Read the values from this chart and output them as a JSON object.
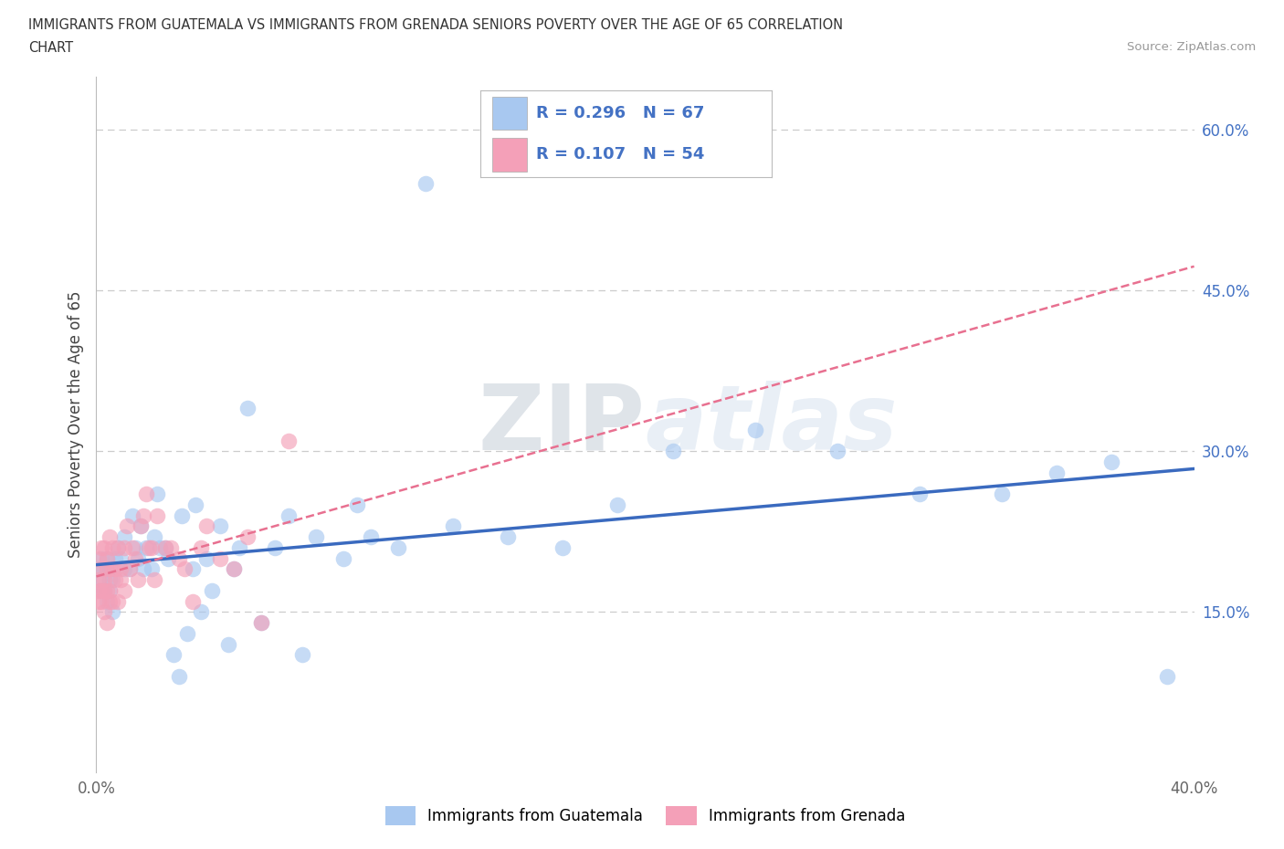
{
  "title_line1": "IMMIGRANTS FROM GUATEMALA VS IMMIGRANTS FROM GRENADA SENIORS POVERTY OVER THE AGE OF 65 CORRELATION",
  "title_line2": "CHART",
  "source": "Source: ZipAtlas.com",
  "ylabel": "Seniors Poverty Over the Age of 65",
  "xlim": [
    0.0,
    0.4
  ],
  "ylim": [
    0.0,
    0.65
  ],
  "xticks": [
    0.0,
    0.05,
    0.1,
    0.15,
    0.2,
    0.25,
    0.3,
    0.35,
    0.4
  ],
  "xticklabels": [
    "0.0%",
    "",
    "",
    "",
    "",
    "",
    "",
    "",
    "40.0%"
  ],
  "yticks_right": [
    0.0,
    0.15,
    0.3,
    0.45,
    0.6
  ],
  "yticklabels_right": [
    "",
    "15.0%",
    "30.0%",
    "45.0%",
    "60.0%"
  ],
  "grid_color": "#cccccc",
  "background_color": "#ffffff",
  "guatemala_color": "#a8c8f0",
  "grenada_color": "#f4a0b8",
  "guatemala_line_color": "#3a6abf",
  "grenada_line_color": "#e87090",
  "R_guatemala": 0.296,
  "N_guatemala": 67,
  "R_grenada": 0.107,
  "N_grenada": 54,
  "legend_label_1": "Immigrants from Guatemala",
  "legend_label_2": "Immigrants from Grenada",
  "guatemala_x": [
    0.001,
    0.001,
    0.002,
    0.002,
    0.003,
    0.003,
    0.004,
    0.004,
    0.005,
    0.005,
    0.005,
    0.006,
    0.006,
    0.007,
    0.008,
    0.009,
    0.01,
    0.01,
    0.012,
    0.013,
    0.014,
    0.015,
    0.016,
    0.017,
    0.018,
    0.02,
    0.021,
    0.022,
    0.023,
    0.025,
    0.026,
    0.028,
    0.03,
    0.031,
    0.033,
    0.035,
    0.036,
    0.038,
    0.04,
    0.042,
    0.045,
    0.048,
    0.05,
    0.052,
    0.055,
    0.06,
    0.065,
    0.07,
    0.075,
    0.08,
    0.09,
    0.095,
    0.1,
    0.11,
    0.12,
    0.13,
    0.15,
    0.17,
    0.19,
    0.21,
    0.24,
    0.27,
    0.3,
    0.33,
    0.35,
    0.37,
    0.39
  ],
  "guatemala_y": [
    0.19,
    0.17,
    0.18,
    0.2,
    0.17,
    0.19,
    0.16,
    0.2,
    0.17,
    0.18,
    0.19,
    0.15,
    0.18,
    0.2,
    0.21,
    0.2,
    0.19,
    0.22,
    0.19,
    0.24,
    0.21,
    0.2,
    0.23,
    0.19,
    0.21,
    0.19,
    0.22,
    0.26,
    0.21,
    0.21,
    0.2,
    0.11,
    0.09,
    0.24,
    0.13,
    0.19,
    0.25,
    0.15,
    0.2,
    0.17,
    0.23,
    0.12,
    0.19,
    0.21,
    0.34,
    0.14,
    0.21,
    0.24,
    0.11,
    0.22,
    0.2,
    0.25,
    0.22,
    0.21,
    0.55,
    0.23,
    0.22,
    0.21,
    0.25,
    0.3,
    0.32,
    0.3,
    0.26,
    0.26,
    0.28,
    0.29,
    0.09
  ],
  "grenada_x": [
    0.001,
    0.001,
    0.001,
    0.001,
    0.002,
    0.002,
    0.002,
    0.002,
    0.003,
    0.003,
    0.003,
    0.003,
    0.004,
    0.004,
    0.004,
    0.004,
    0.005,
    0.005,
    0.005,
    0.006,
    0.006,
    0.006,
    0.007,
    0.007,
    0.008,
    0.008,
    0.009,
    0.009,
    0.01,
    0.01,
    0.011,
    0.012,
    0.013,
    0.014,
    0.015,
    0.016,
    0.017,
    0.018,
    0.019,
    0.02,
    0.021,
    0.022,
    0.025,
    0.027,
    0.03,
    0.032,
    0.035,
    0.038,
    0.04,
    0.045,
    0.05,
    0.055,
    0.06,
    0.07
  ],
  "grenada_y": [
    0.2,
    0.18,
    0.17,
    0.16,
    0.21,
    0.19,
    0.17,
    0.16,
    0.15,
    0.21,
    0.18,
    0.17,
    0.14,
    0.19,
    0.2,
    0.17,
    0.16,
    0.22,
    0.17,
    0.16,
    0.21,
    0.19,
    0.18,
    0.19,
    0.16,
    0.21,
    0.19,
    0.18,
    0.17,
    0.21,
    0.23,
    0.19,
    0.21,
    0.2,
    0.18,
    0.23,
    0.24,
    0.26,
    0.21,
    0.21,
    0.18,
    0.24,
    0.21,
    0.21,
    0.2,
    0.19,
    0.16,
    0.21,
    0.23,
    0.2,
    0.19,
    0.22,
    0.14,
    0.31
  ]
}
